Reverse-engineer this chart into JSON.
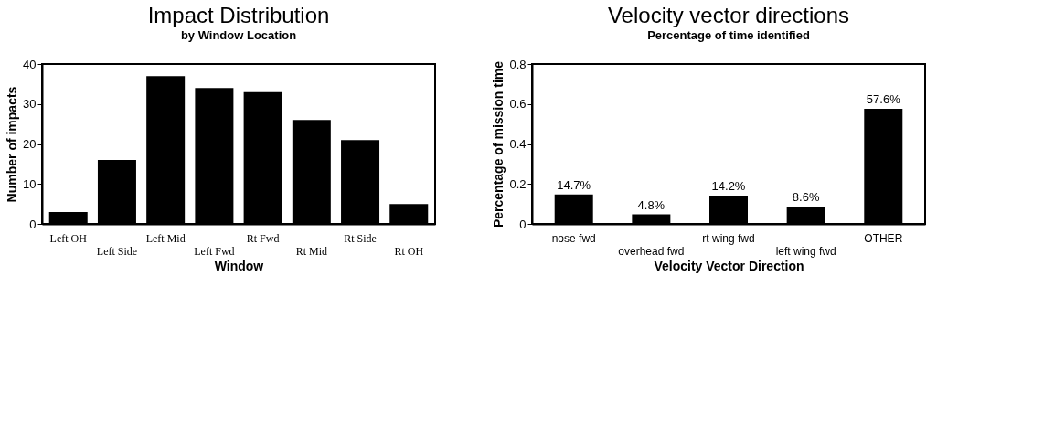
{
  "chart_data": [
    {
      "type": "bar",
      "title": "Impact Distribution",
      "subtitle": "by Window Location",
      "xlabel": "Window",
      "ylabel": "Number of impacts",
      "categories": [
        "Left OH",
        "Left Side",
        "Left Mid",
        "Left Fwd",
        "Rt Fwd",
        "Rt Mid",
        "Rt Side",
        "Rt OH"
      ],
      "values": [
        3,
        16,
        37,
        34,
        33,
        26,
        21,
        5
      ],
      "color": "#000000",
      "ylim": [
        0,
        40
      ],
      "yticks": [
        0,
        10,
        20,
        30,
        40
      ],
      "grid": false
    },
    {
      "type": "bar",
      "title": "Velocity vector directions",
      "subtitle": "Percentage of time identified",
      "xlabel": "Velocity Vector Direction",
      "ylabel": "Percentage of mission time",
      "categories": [
        "nose fwd",
        "overhead fwd",
        "rt wing fwd",
        "left wing fwd",
        "OTHER"
      ],
      "values": [
        0.147,
        0.048,
        0.142,
        0.086,
        0.576
      ],
      "color": "#000000",
      "value_labels": [
        "14.7%",
        "4.8%",
        "14.2%",
        "8.6%",
        "57.6%"
      ],
      "ylim": [
        0,
        0.8
      ],
      "yticks": [
        0,
        0.2,
        0.4,
        0.6,
        0.8
      ],
      "grid": false
    }
  ]
}
